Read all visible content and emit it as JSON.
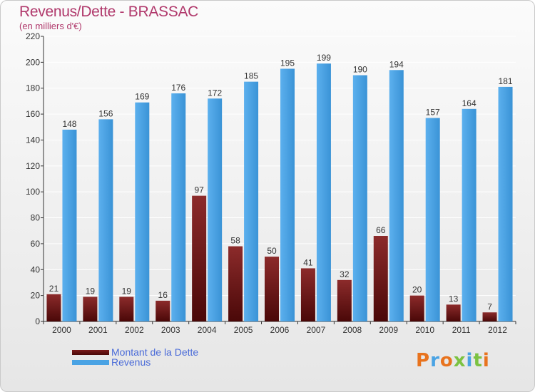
{
  "title": "Revenus/Dette - BRASSAC",
  "subtitle": "(en milliers d'€)",
  "logo": "Proxiti",
  "colors": {
    "title": "#b0386b",
    "dette": "#7a1a1a",
    "revenus": "#4aa3e4",
    "legend_text": "#4a6bd8",
    "grid": "#ffffff"
  },
  "chart_data": {
    "type": "bar",
    "title": "Revenus/Dette - BRASSAC",
    "subtitle": "(en milliers d'€)",
    "categories": [
      "2000",
      "2001",
      "2002",
      "2003",
      "2004",
      "2005",
      "2006",
      "2007",
      "2008",
      "2009",
      "2010",
      "2011",
      "2012"
    ],
    "series": [
      {
        "name": "Montant de la Dette",
        "values": [
          21,
          19,
          19,
          16,
          97,
          58,
          50,
          41,
          32,
          66,
          20,
          13,
          7
        ]
      },
      {
        "name": "Revenus",
        "values": [
          148,
          156,
          169,
          176,
          172,
          185,
          195,
          199,
          190,
          194,
          157,
          164,
          181
        ]
      }
    ],
    "ylim": [
      0,
      220
    ],
    "yticks": [
      0,
      20,
      40,
      60,
      80,
      100,
      120,
      140,
      160,
      180,
      200,
      220
    ],
    "grid": true,
    "legend_position": "bottom-left"
  }
}
